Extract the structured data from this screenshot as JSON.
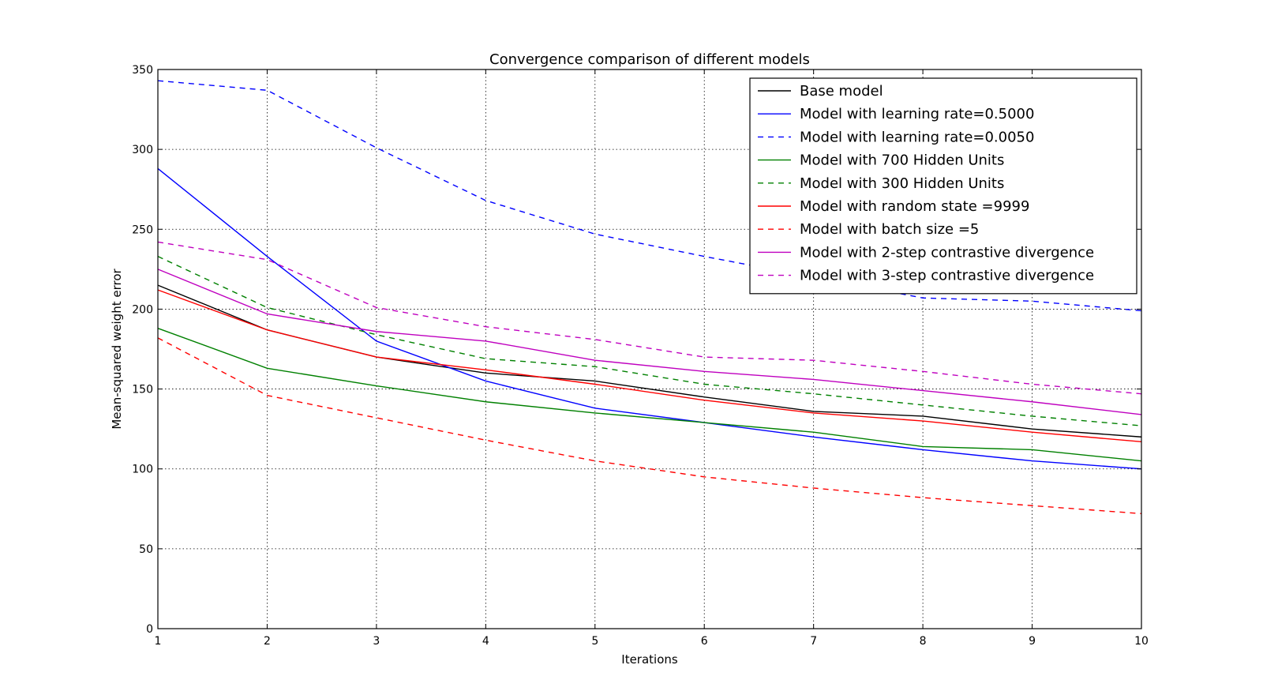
{
  "chart_data": {
    "type": "line",
    "title": "Convergence comparison of different models",
    "xlabel": "Iterations",
    "ylabel": "Mean-squared weight error",
    "x": [
      1,
      2,
      3,
      4,
      5,
      6,
      7,
      8,
      9,
      10
    ],
    "xlim": [
      1,
      10
    ],
    "ylim": [
      0,
      350
    ],
    "xticks": [
      1,
      2,
      3,
      4,
      5,
      6,
      7,
      8,
      9,
      10
    ],
    "yticks": [
      0,
      50,
      100,
      150,
      200,
      250,
      300,
      350
    ],
    "grid": true,
    "legend_position": "top-right",
    "series": [
      {
        "name": "Base model",
        "color": "#000000",
        "dash": "solid",
        "values": [
          215,
          187,
          170,
          160,
          155,
          145,
          136,
          133,
          125,
          120
        ]
      },
      {
        "name": "Model with learning rate=0.5000",
        "color": "#0000ff",
        "dash": "solid",
        "values": [
          288,
          233,
          180,
          155,
          138,
          129,
          120,
          112,
          105,
          100
        ]
      },
      {
        "name": "Model with learning rate=0.0050",
        "color": "#0000ff",
        "dash": "dashed",
        "values": [
          343,
          337,
          301,
          268,
          247,
          233,
          220,
          207,
          205,
          199
        ]
      },
      {
        "name": "Model with 700 Hidden Units",
        "color": "#008000",
        "dash": "solid",
        "values": [
          188,
          163,
          152,
          142,
          135,
          129,
          123,
          114,
          112,
          105
        ]
      },
      {
        "name": "Model with 300 Hidden Units",
        "color": "#008000",
        "dash": "dashed",
        "values": [
          233,
          201,
          184,
          169,
          164,
          153,
          147,
          140,
          133,
          127
        ]
      },
      {
        "name": "Model with random state =9999",
        "color": "#ff0000",
        "dash": "solid",
        "values": [
          212,
          187,
          170,
          162,
          153,
          143,
          135,
          130,
          123,
          117
        ]
      },
      {
        "name": "Model with batch size =5",
        "color": "#ff0000",
        "dash": "dashed",
        "values": [
          182,
          146,
          132,
          118,
          105,
          95,
          88,
          82,
          77,
          72
        ]
      },
      {
        "name": "Model with 2-step contrastive divergence",
        "color": "#bf00bf",
        "dash": "solid",
        "values": [
          225,
          197,
          186,
          180,
          168,
          161,
          156,
          149,
          142,
          134
        ]
      },
      {
        "name": "Model with 3-step contrastive divergence",
        "color": "#bf00bf",
        "dash": "dashed",
        "values": [
          242,
          231,
          201,
          189,
          181,
          170,
          168,
          161,
          153,
          147
        ]
      }
    ]
  }
}
